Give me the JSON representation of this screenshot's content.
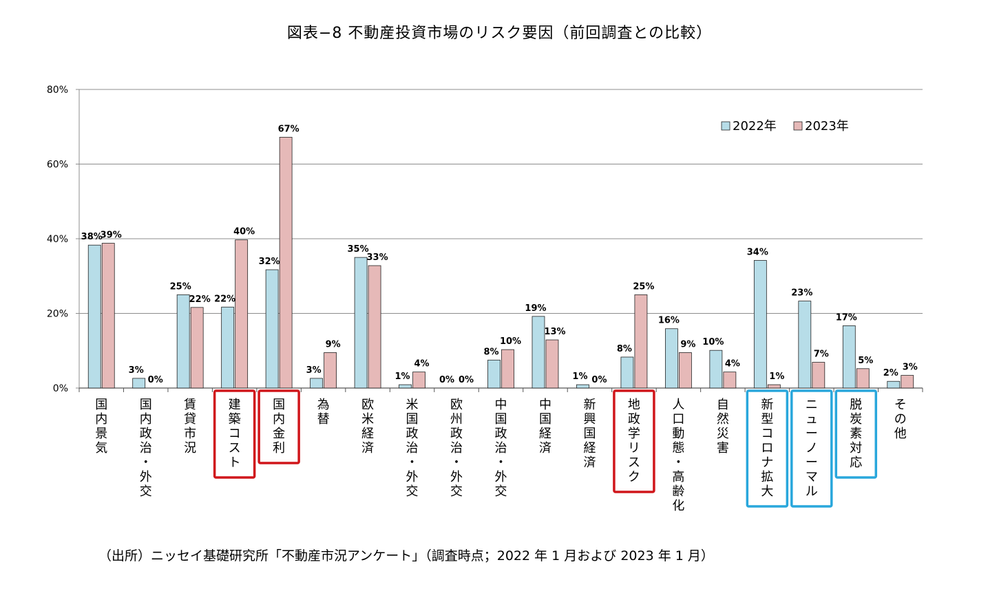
{
  "title": "図表−8 不動産投資市場のリスク要因（前回調査との比較）",
  "source_note": "（出所）ニッセイ基礎研究所「不動産市況アンケート」（調査時点；2022 年 1 月および 2023 年 1 月）",
  "colors": {
    "series_2022_fill": "#b7dde8",
    "series_2023_fill": "#e6b9b8",
    "bar_stroke": "#222222",
    "grid": "#8c8c8c",
    "highlight_red": "#d0161b",
    "highlight_blue": "#29a7dc"
  },
  "chart_data": {
    "type": "bar",
    "title": "",
    "xlabel": "",
    "ylabel": "",
    "ylim": [
      0,
      80
    ],
    "yticks": [
      "0%",
      "20%",
      "40%",
      "60%",
      "80%"
    ],
    "grid": true,
    "legend_position": "top-right",
    "categories": [
      "国内景気",
      "国内政治・外交",
      "賃貸市況",
      "建築コスト",
      "国内金利",
      "為替",
      "欧米経済",
      "米国政治・外交",
      "欧州政治・外交",
      "中国政治・外交",
      "中国経済",
      "新興国経済",
      "地政学リスク",
      "人口動態・高齢化",
      "自然災害",
      "新型コロナ拡大",
      "ニューノーマル",
      "脱炭素対応",
      "その他"
    ],
    "series": [
      {
        "name": "2022年",
        "values": [
          38.3,
          2.6,
          25.0,
          21.7,
          31.7,
          2.6,
          35.0,
          0.9,
          0.0,
          7.5,
          19.2,
          0.9,
          8.3,
          15.9,
          10.1,
          34.2,
          23.3,
          16.7,
          1.8
        ],
        "labels": [
          "38%",
          "3%",
          "25%",
          "22%",
          "32%",
          "3%",
          "35%",
          "1%",
          "0%",
          "8%",
          "19%",
          "1%",
          "8%",
          "16%",
          "10%",
          "34%",
          "23%",
          "17%",
          "2%"
        ]
      },
      {
        "name": "2023年",
        "values": [
          38.8,
          0.0,
          21.6,
          39.7,
          67.2,
          9.5,
          32.8,
          4.3,
          0.0,
          10.3,
          12.9,
          0.0,
          25.0,
          9.5,
          4.3,
          0.9,
          6.9,
          5.2,
          3.4
        ],
        "labels": [
          "39%",
          "0%",
          "22%",
          "40%",
          "67%",
          "9%",
          "33%",
          "4%",
          "0%",
          "10%",
          "13%",
          "0%",
          "25%",
          "9%",
          "4%",
          "1%",
          "7%",
          "5%",
          "3%"
        ]
      }
    ],
    "highlights": {
      "red": [
        "建築コスト",
        "国内金利",
        "地政学リスク"
      ],
      "blue": [
        "新型コロナ拡大",
        "ニューノーマル",
        "脱炭素対応"
      ]
    }
  }
}
